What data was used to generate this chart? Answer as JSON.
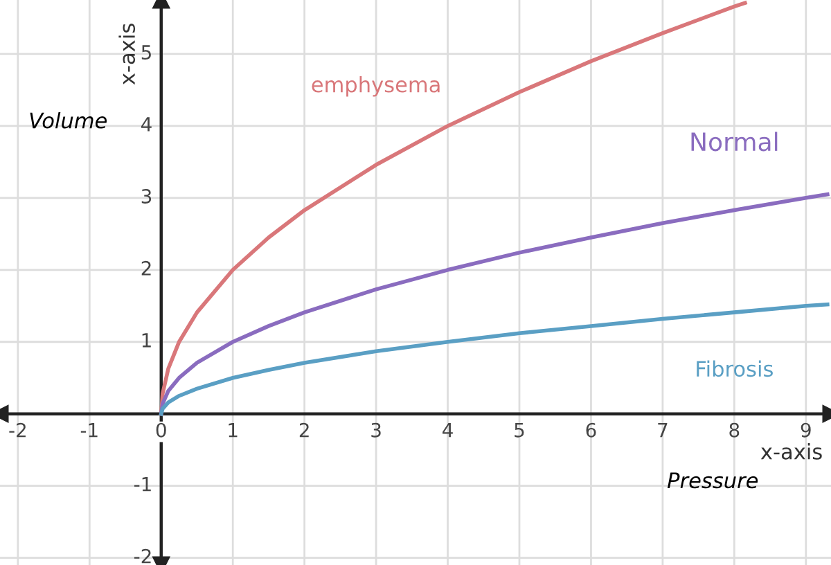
{
  "chart_data": {
    "type": "line",
    "xlabel": "x-axis",
    "ylabel": "x-axis",
    "annotations": [
      "Volume",
      "Pressure"
    ],
    "xlim": [
      -2.25,
      9.35
    ],
    "ylim": [
      -2.1,
      5.75
    ],
    "xticks": [
      -2,
      -1,
      0,
      1,
      2,
      3,
      4,
      5,
      6,
      7,
      8,
      9
    ],
    "yticks": [
      -2,
      -1,
      1,
      2,
      3,
      4,
      5
    ],
    "grid": true,
    "marker": "none",
    "line_style": "solid",
    "series": [
      {
        "name": "emphysema",
        "color": "#d9777a",
        "x": [
          0,
          0.02,
          0.1,
          0.25,
          0.5,
          1,
          1.5,
          2,
          3,
          4,
          5,
          6,
          7,
          8,
          8.15
        ],
        "values": [
          0,
          0.28,
          0.63,
          1,
          1.41,
          2,
          2.45,
          2.83,
          3.46,
          4,
          4.47,
          4.9,
          5.29,
          5.66,
          5.71
        ]
      },
      {
        "name": "Normal",
        "color": "#8a6cbf",
        "x": [
          0,
          0.02,
          0.1,
          0.25,
          0.5,
          1,
          1.5,
          2,
          3,
          4,
          5,
          6,
          7,
          8,
          9,
          9.3
        ],
        "values": [
          0,
          0.14,
          0.32,
          0.5,
          0.71,
          1,
          1.22,
          1.41,
          1.73,
          2,
          2.24,
          2.45,
          2.65,
          2.83,
          3,
          3.05
        ]
      },
      {
        "name": "Fibrosis",
        "color": "#5a9fc4",
        "x": [
          0,
          0.02,
          0.1,
          0.25,
          0.5,
          1,
          1.5,
          2,
          3,
          4,
          5,
          6,
          7,
          8,
          9,
          9.3
        ],
        "values": [
          0,
          0.07,
          0.16,
          0.25,
          0.35,
          0.5,
          0.61,
          0.71,
          0.87,
          1,
          1.12,
          1.22,
          1.32,
          1.41,
          1.5,
          1.52
        ]
      }
    ]
  }
}
